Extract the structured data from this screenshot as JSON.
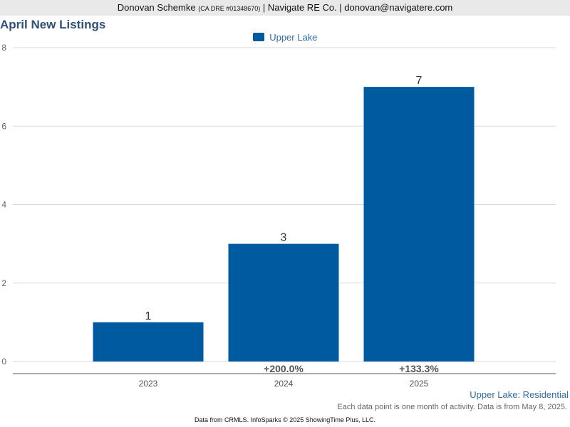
{
  "header": {
    "agent_name": "Donovan Schemke",
    "license": "(CA DRE #01348670)",
    "company_and_email": "| Navigate RE Co. | donovan@navigatere.com"
  },
  "chart_data": {
    "type": "bar",
    "title": "April New Listings",
    "categories": [
      "2023",
      "2024",
      "2025"
    ],
    "series": [
      {
        "name": "Upper Lake",
        "values": [
          1,
          3,
          7
        ],
        "color": "#005a9f"
      }
    ],
    "data_labels": [
      "1",
      "3",
      "7"
    ],
    "change_labels": [
      "",
      "+200.0%",
      "+133.3%"
    ],
    "yticks": [
      "0",
      "2",
      "4",
      "6",
      "8"
    ],
    "ylim": [
      0,
      8
    ],
    "grid": true,
    "legend": "top-center",
    "xlabel": "",
    "ylabel": ""
  },
  "chart_subtitle": "Upper Lake: Residential",
  "note": "Each data point is one month of activity. Data is from May 8, 2025.",
  "footer": "Data from CRMLS. InfoSparks © 2025 ShowingTime Plus, LLC."
}
